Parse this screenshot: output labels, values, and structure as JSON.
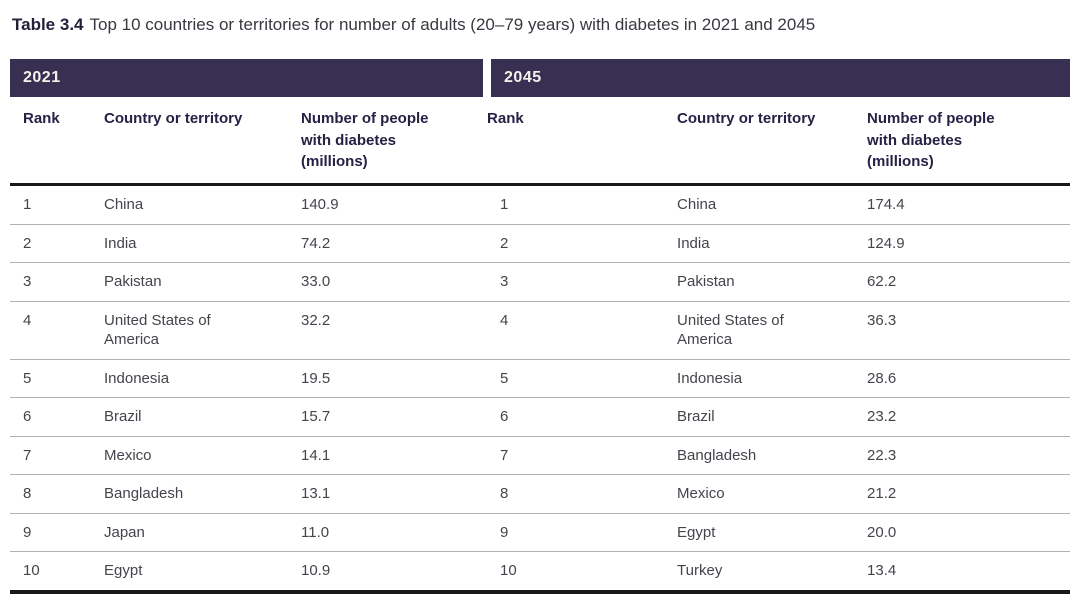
{
  "caption": {
    "label": "Table 3.4",
    "text": "Top 10 countries or territories for number of adults (20–79 years) with diabetes in 2021 and 2045"
  },
  "columns": {
    "rank": "Rank",
    "country": "Country or territory",
    "number": "Number of people with diabetes (millions)"
  },
  "colors": {
    "band_background": "#373052",
    "band_text": "#f6f2ea",
    "header_text": "#262145",
    "body_text": "#45434c",
    "heavy_rule": "#1a181c",
    "row_rule": "#b2b1b5",
    "title_bold": "#22203a",
    "title_text": "#3a3840"
  },
  "tables": [
    {
      "year": "2021",
      "rows": [
        {
          "rank": "1",
          "country": "China",
          "value": "140.9"
        },
        {
          "rank": "2",
          "country": "India",
          "value": "74.2"
        },
        {
          "rank": "3",
          "country": "Pakistan",
          "value": "33.0"
        },
        {
          "rank": "4",
          "country": "United States of America",
          "value": "32.2"
        },
        {
          "rank": "5",
          "country": "Indonesia",
          "value": "19.5"
        },
        {
          "rank": "6",
          "country": "Brazil",
          "value": "15.7"
        },
        {
          "rank": "7",
          "country": "Mexico",
          "value": "14.1"
        },
        {
          "rank": "8",
          "country": "Bangladesh",
          "value": "13.1"
        },
        {
          "rank": "9",
          "country": "Japan",
          "value": "11.0"
        },
        {
          "rank": "10",
          "country": "Egypt",
          "value": "10.9"
        }
      ]
    },
    {
      "year": "2045",
      "rows": [
        {
          "rank": "1",
          "country": "China",
          "value": "174.4"
        },
        {
          "rank": "2",
          "country": "India",
          "value": "124.9"
        },
        {
          "rank": "3",
          "country": "Pakistan",
          "value": "62.2"
        },
        {
          "rank": "4",
          "country": "United States of America",
          "value": "36.3"
        },
        {
          "rank": "5",
          "country": "Indonesia",
          "value": "28.6"
        },
        {
          "rank": "6",
          "country": "Brazil",
          "value": "23.2"
        },
        {
          "rank": "7",
          "country": "Bangladesh",
          "value": "22.3"
        },
        {
          "rank": "8",
          "country": "Mexico",
          "value": "21.2"
        },
        {
          "rank": "9",
          "country": "Egypt",
          "value": "20.0"
        },
        {
          "rank": "10",
          "country": "Turkey",
          "value": "13.4"
        }
      ]
    }
  ]
}
